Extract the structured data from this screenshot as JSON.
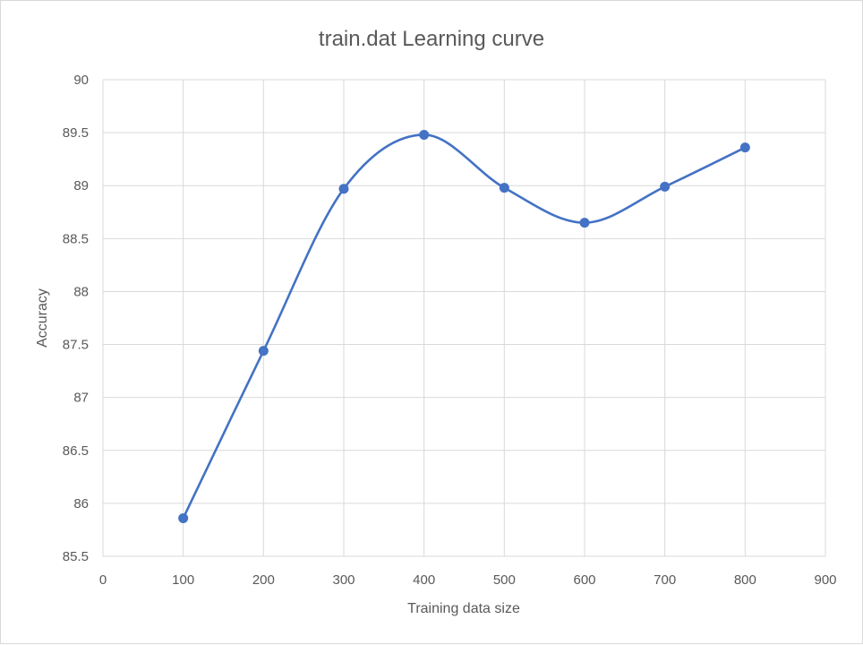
{
  "chart_data": {
    "type": "line",
    "title": "train.dat Learning curve",
    "xlabel": "Training data size",
    "ylabel": "Accuracy",
    "xlim": [
      0,
      900
    ],
    "ylim": [
      85.5,
      90
    ],
    "xticks": [
      "0",
      "100",
      "200",
      "300",
      "400",
      "500",
      "600",
      "700",
      "800",
      "900"
    ],
    "yticks": [
      "85.5",
      "86",
      "86.5",
      "87",
      "87.5",
      "88",
      "88.5",
      "89",
      "89.5",
      "90"
    ],
    "grid": true,
    "smooth": true,
    "legend": "none",
    "series": [
      {
        "color": "#4472c4",
        "x": [
          100,
          200,
          300,
          400,
          500,
          600,
          700,
          800
        ],
        "y": [
          85.86,
          87.44,
          88.97,
          89.48,
          88.98,
          88.65,
          88.99,
          89.36
        ]
      }
    ]
  }
}
